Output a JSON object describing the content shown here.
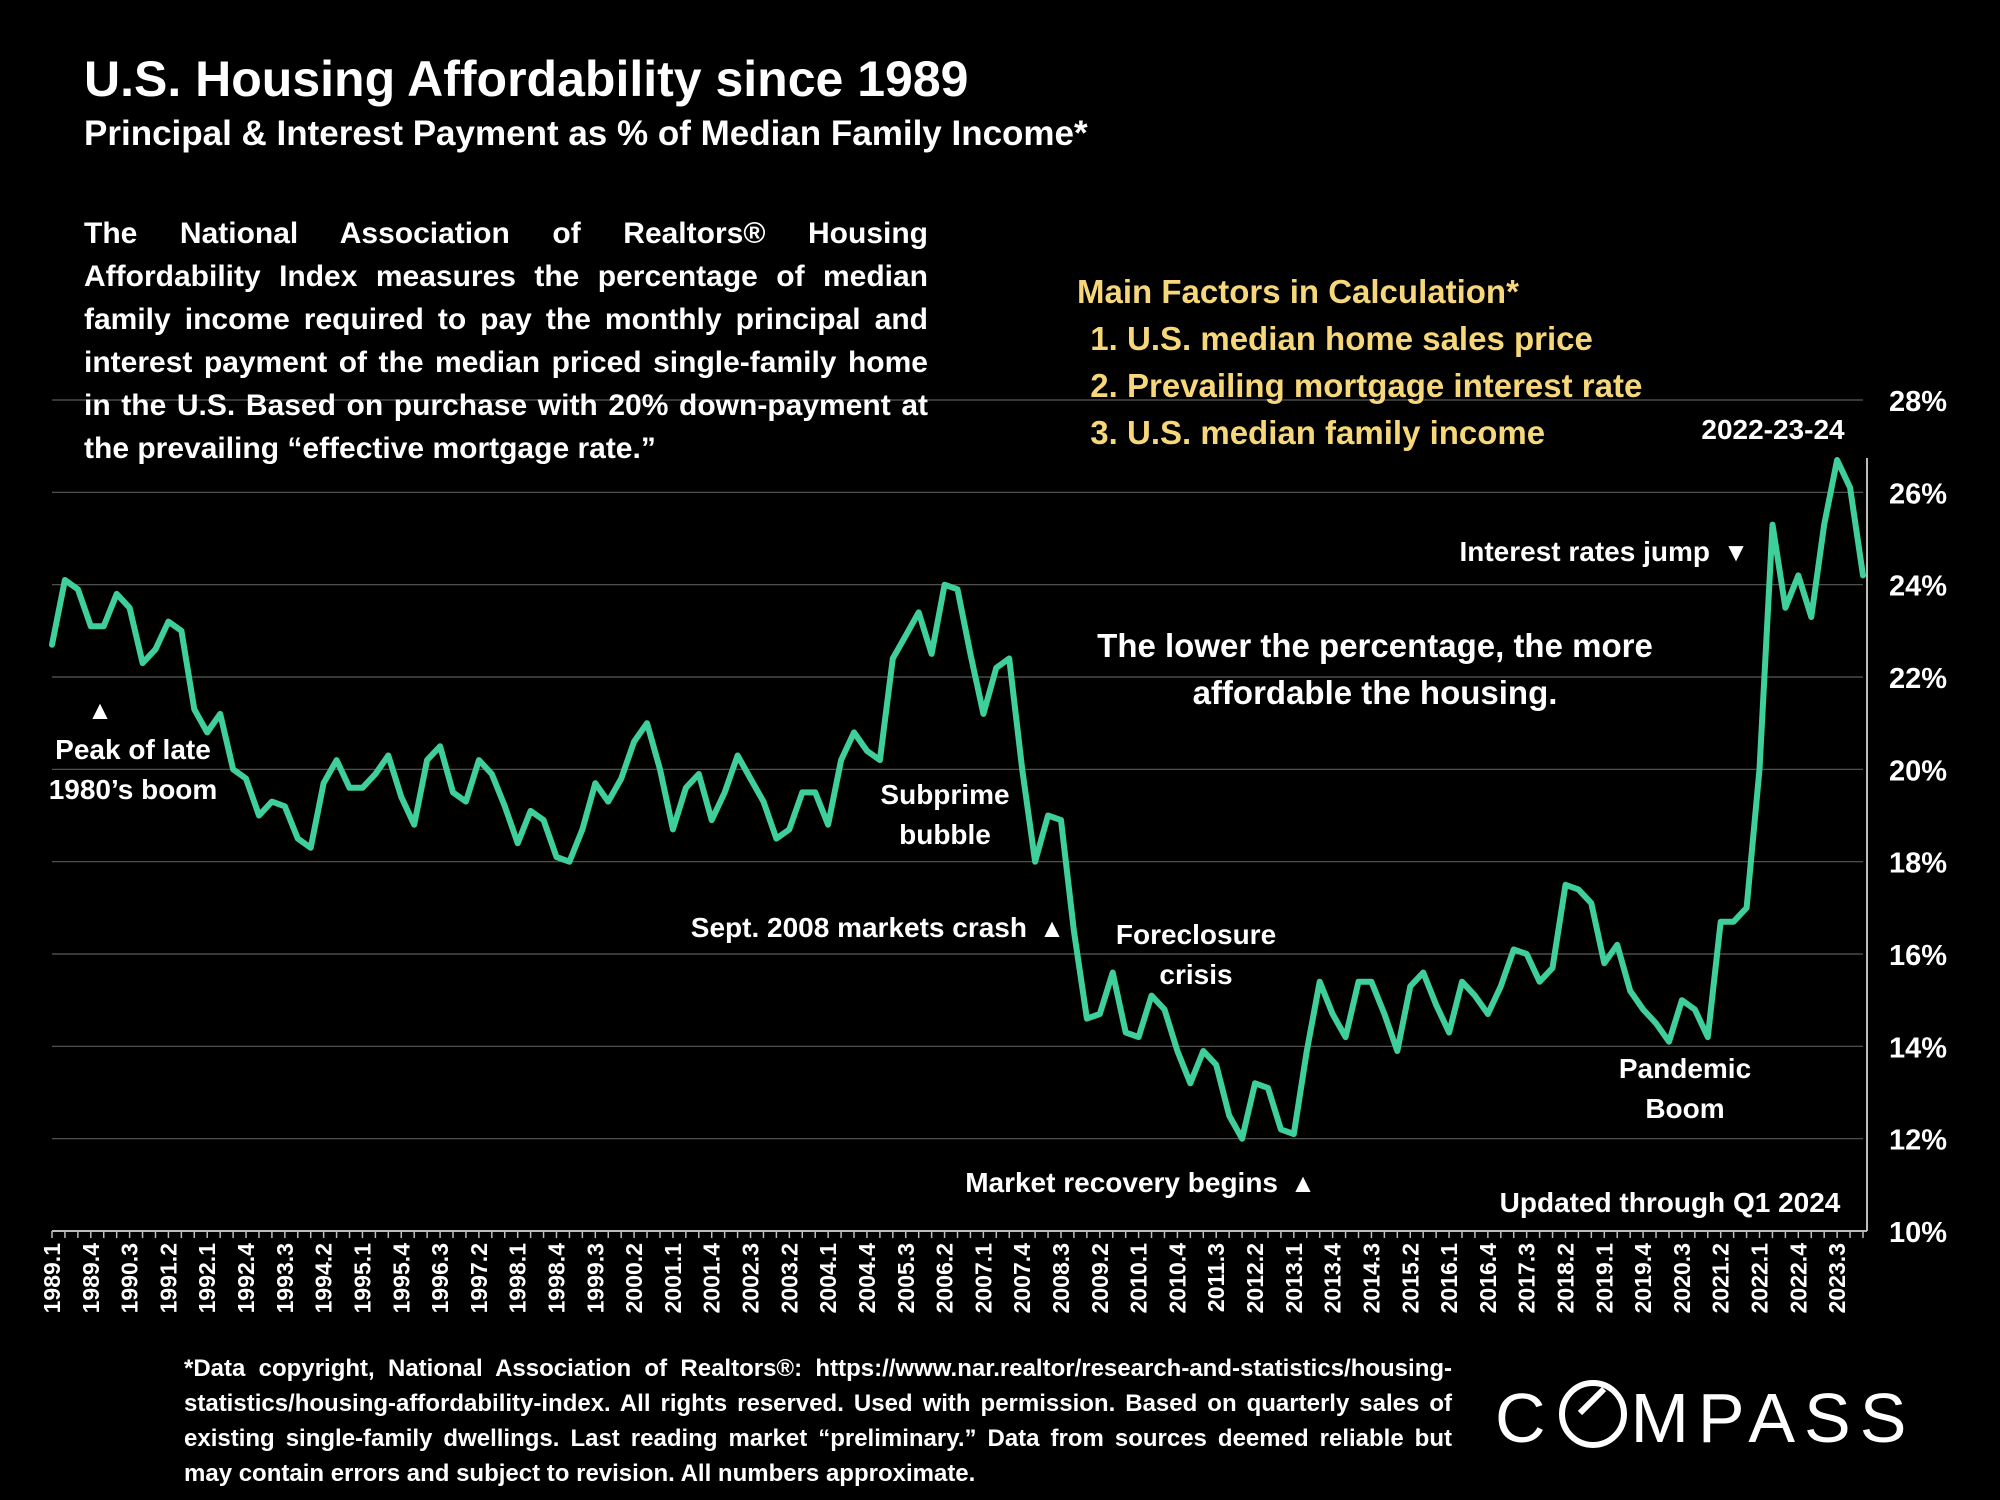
{
  "header": {
    "title": "U.S. Housing Affordability since 1989",
    "subtitle": "Principal & Interest Payment as % of Median Family Income*"
  },
  "description": "The National Association of Realtors® Housing Affordability Index measures the percentage of median family income required to pay the monthly principal and interest payment of the median priced single-family home in the U.S. Based on purchase with 20% down-payment at the prevailing “effective mortgage rate.”",
  "factors": {
    "title": "Main Factors in Calculation*",
    "items": [
      "U.S. median home sales price",
      "Prevailing mortgage interest rate",
      "U.S. median family income"
    ]
  },
  "affordability_note": "The lower the percentage, the more affordable the housing.",
  "footnote": "*Data copyright, National Association of Realtors®: https://www.nar.realtor/research-and-statistics/housing-statistics/housing-affordability-index. All rights reserved. Used with permission. Based on quarterly sales of existing single-family dwellings. Last reading market “preliminary.” Data from sources deemed reliable but may contain errors and subject to revision. All numbers approximate.",
  "logo": {
    "before": "C",
    "after": "MPASS"
  },
  "colors": {
    "line": "#3fcf9a",
    "grid": "#5a5a5a",
    "factors": "#f6d77a",
    "background": "#000000"
  },
  "chart_data": {
    "type": "line",
    "title": "U.S. Housing Affordability since 1989",
    "ylabel": "Principal & Interest Payment as % of Median Family Income",
    "ylim": [
      10,
      28
    ],
    "yticks": [
      10,
      12,
      14,
      16,
      18,
      20,
      22,
      24,
      26,
      28
    ],
    "ytick_labels": [
      "10%",
      "12%",
      "14%",
      "16%",
      "18%",
      "20%",
      "22%",
      "24%",
      "26%",
      "28%"
    ],
    "xtick_labels": [
      "1989.1",
      "1989.4",
      "1990.3",
      "1991.2",
      "1992.1",
      "1992.4",
      "1993.3",
      "1994.2",
      "1995.1",
      "1995.4",
      "1996.3",
      "1997.2",
      "1998.1",
      "1998.4",
      "1999.3",
      "2000.2",
      "2001.1",
      "2001.4",
      "2002.3",
      "2003.2",
      "2004.1",
      "2004.4",
      "2005.3",
      "2006.2",
      "2007.1",
      "2007.4",
      "2008.3",
      "2009.2",
      "2010.1",
      "2010.4",
      "2011.3",
      "2012.2",
      "2013.1",
      "2013.4",
      "2014.3",
      "2015.2",
      "2016.1",
      "2016.4",
      "2017.3",
      "2018.2",
      "2019.1",
      "2019.4",
      "2020.3",
      "2021.2",
      "2022.1",
      "2022.4",
      "2023.3"
    ],
    "series": [
      {
        "name": "P&I as % of median family income",
        "values": [
          22.7,
          24.1,
          23.9,
          23.1,
          23.1,
          23.8,
          23.5,
          22.3,
          22.6,
          23.2,
          23.0,
          21.3,
          20.8,
          21.2,
          20.0,
          19.8,
          19.0,
          19.3,
          19.2,
          18.5,
          18.3,
          19.7,
          20.2,
          19.6,
          19.6,
          19.9,
          20.3,
          19.4,
          18.8,
          20.2,
          20.5,
          19.5,
          19.3,
          20.2,
          19.9,
          19.2,
          18.4,
          19.1,
          18.9,
          18.1,
          18.0,
          18.7,
          19.7,
          19.3,
          19.8,
          20.6,
          21.0,
          20.0,
          18.7,
          19.6,
          19.9,
          18.9,
          19.5,
          20.3,
          19.8,
          19.3,
          18.5,
          18.7,
          19.5,
          19.5,
          18.8,
          20.2,
          20.8,
          20.4,
          20.2,
          22.4,
          22.9,
          23.4,
          22.5,
          24.0,
          23.9,
          22.5,
          21.2,
          22.2,
          22.4,
          20.0,
          18.0,
          19.0,
          18.9,
          16.5,
          14.6,
          14.7,
          15.6,
          14.3,
          14.2,
          15.1,
          14.8,
          13.9,
          13.2,
          13.9,
          13.6,
          12.5,
          12.0,
          13.2,
          13.1,
          12.2,
          12.1,
          13.9,
          15.4,
          14.7,
          14.2,
          15.4,
          15.4,
          14.7,
          13.9,
          15.3,
          15.6,
          14.9,
          14.3,
          15.4,
          15.1,
          14.7,
          15.3,
          16.1,
          16.0,
          15.4,
          15.7,
          17.5,
          17.4,
          17.1,
          15.8,
          16.2,
          15.2,
          14.8,
          14.5,
          14.1,
          15.0,
          14.8,
          14.2,
          16.7,
          16.7,
          17.0,
          20.0,
          25.3,
          23.5,
          24.2,
          23.3,
          25.3,
          26.7,
          26.1,
          24.2
        ]
      }
    ],
    "annotations": [
      {
        "id": "peak",
        "lines": [
          "Peak of late",
          "1980’s boom"
        ],
        "marker": "▲"
      },
      {
        "id": "subprime",
        "lines": [
          "Subprime",
          "bubble"
        ]
      },
      {
        "id": "crash",
        "lines": [
          "Sept. 2008 markets crash"
        ],
        "marker": "▲"
      },
      {
        "id": "foreclosure",
        "lines": [
          "Foreclosure",
          "crisis"
        ]
      },
      {
        "id": "recovery",
        "lines": [
          "Market recovery begins"
        ],
        "marker": "▲"
      },
      {
        "id": "pandemic",
        "lines": [
          "Pandemic",
          "Boom"
        ]
      },
      {
        "id": "rates",
        "lines": [
          "Interest rates jump"
        ],
        "marker": "▼"
      },
      {
        "id": "latest",
        "lines": [
          "2022-23-24"
        ]
      },
      {
        "id": "updated",
        "lines": [
          "Updated through Q1 2024"
        ]
      }
    ]
  }
}
